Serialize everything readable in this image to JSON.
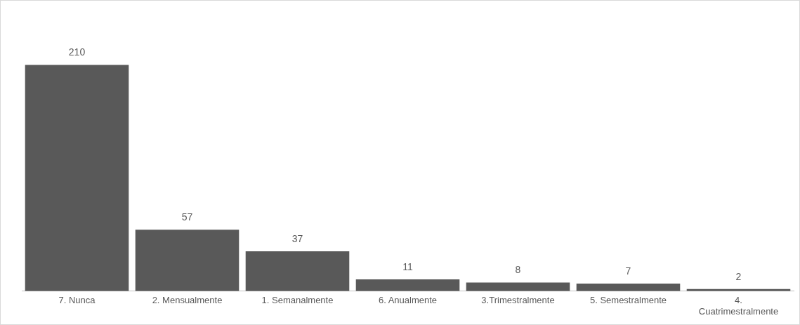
{
  "chart_data": {
    "type": "bar",
    "categories": [
      "7. Nunca",
      "2. Mensualmente",
      "1. Semanalmente",
      "6. Anualmente",
      "3.Trimestralmente",
      "5. Semestralmente",
      "4. Cuatrimestralmente"
    ],
    "values": [
      210,
      57,
      37,
      11,
      8,
      7,
      2
    ],
    "color": "#595959",
    "data_labels": true,
    "grid": false,
    "legend": false
  }
}
